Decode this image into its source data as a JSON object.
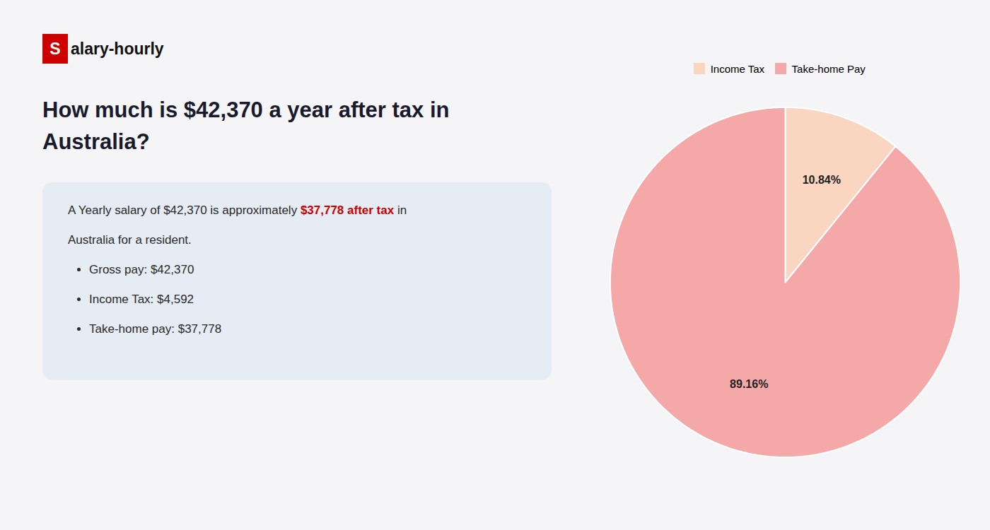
{
  "chart_data": {
    "type": "pie",
    "title": "How much is $42,370 a year after tax in\nAustralia?",
    "annotations": [
      [
        {
          "text": "S",
          "color": "#cc0000"
        },
        {
          "text": "alary-hourly"
        }
      ],
      [
        {
          "text": "A Yearly salary of $42,370 is approximately "
        },
        {
          "text": "$37,778 after tax",
          "color": "#cc0000"
        },
        {
          "text": " in"
        }
      ],
      [
        {
          "text": "Australia for a resident."
        }
      ],
      [
        {
          "text": "Gross pay: $42,370"
        }
      ],
      [
        {
          "text": "Income Tax: $4,592"
        }
      ],
      [
        {
          "text": "Take-home pay: $37,778"
        }
      ]
    ],
    "categories": [
      "Income Tax",
      "Take-home Pay"
    ],
    "values": [
      10.84,
      89.16
    ],
    "value_labels": [
      "10.84%",
      "89.16%"
    ],
    "colors": [
      "#fad5c0",
      "#f5a8a8"
    ],
    "data_labels": true,
    "legend": "top"
  }
}
